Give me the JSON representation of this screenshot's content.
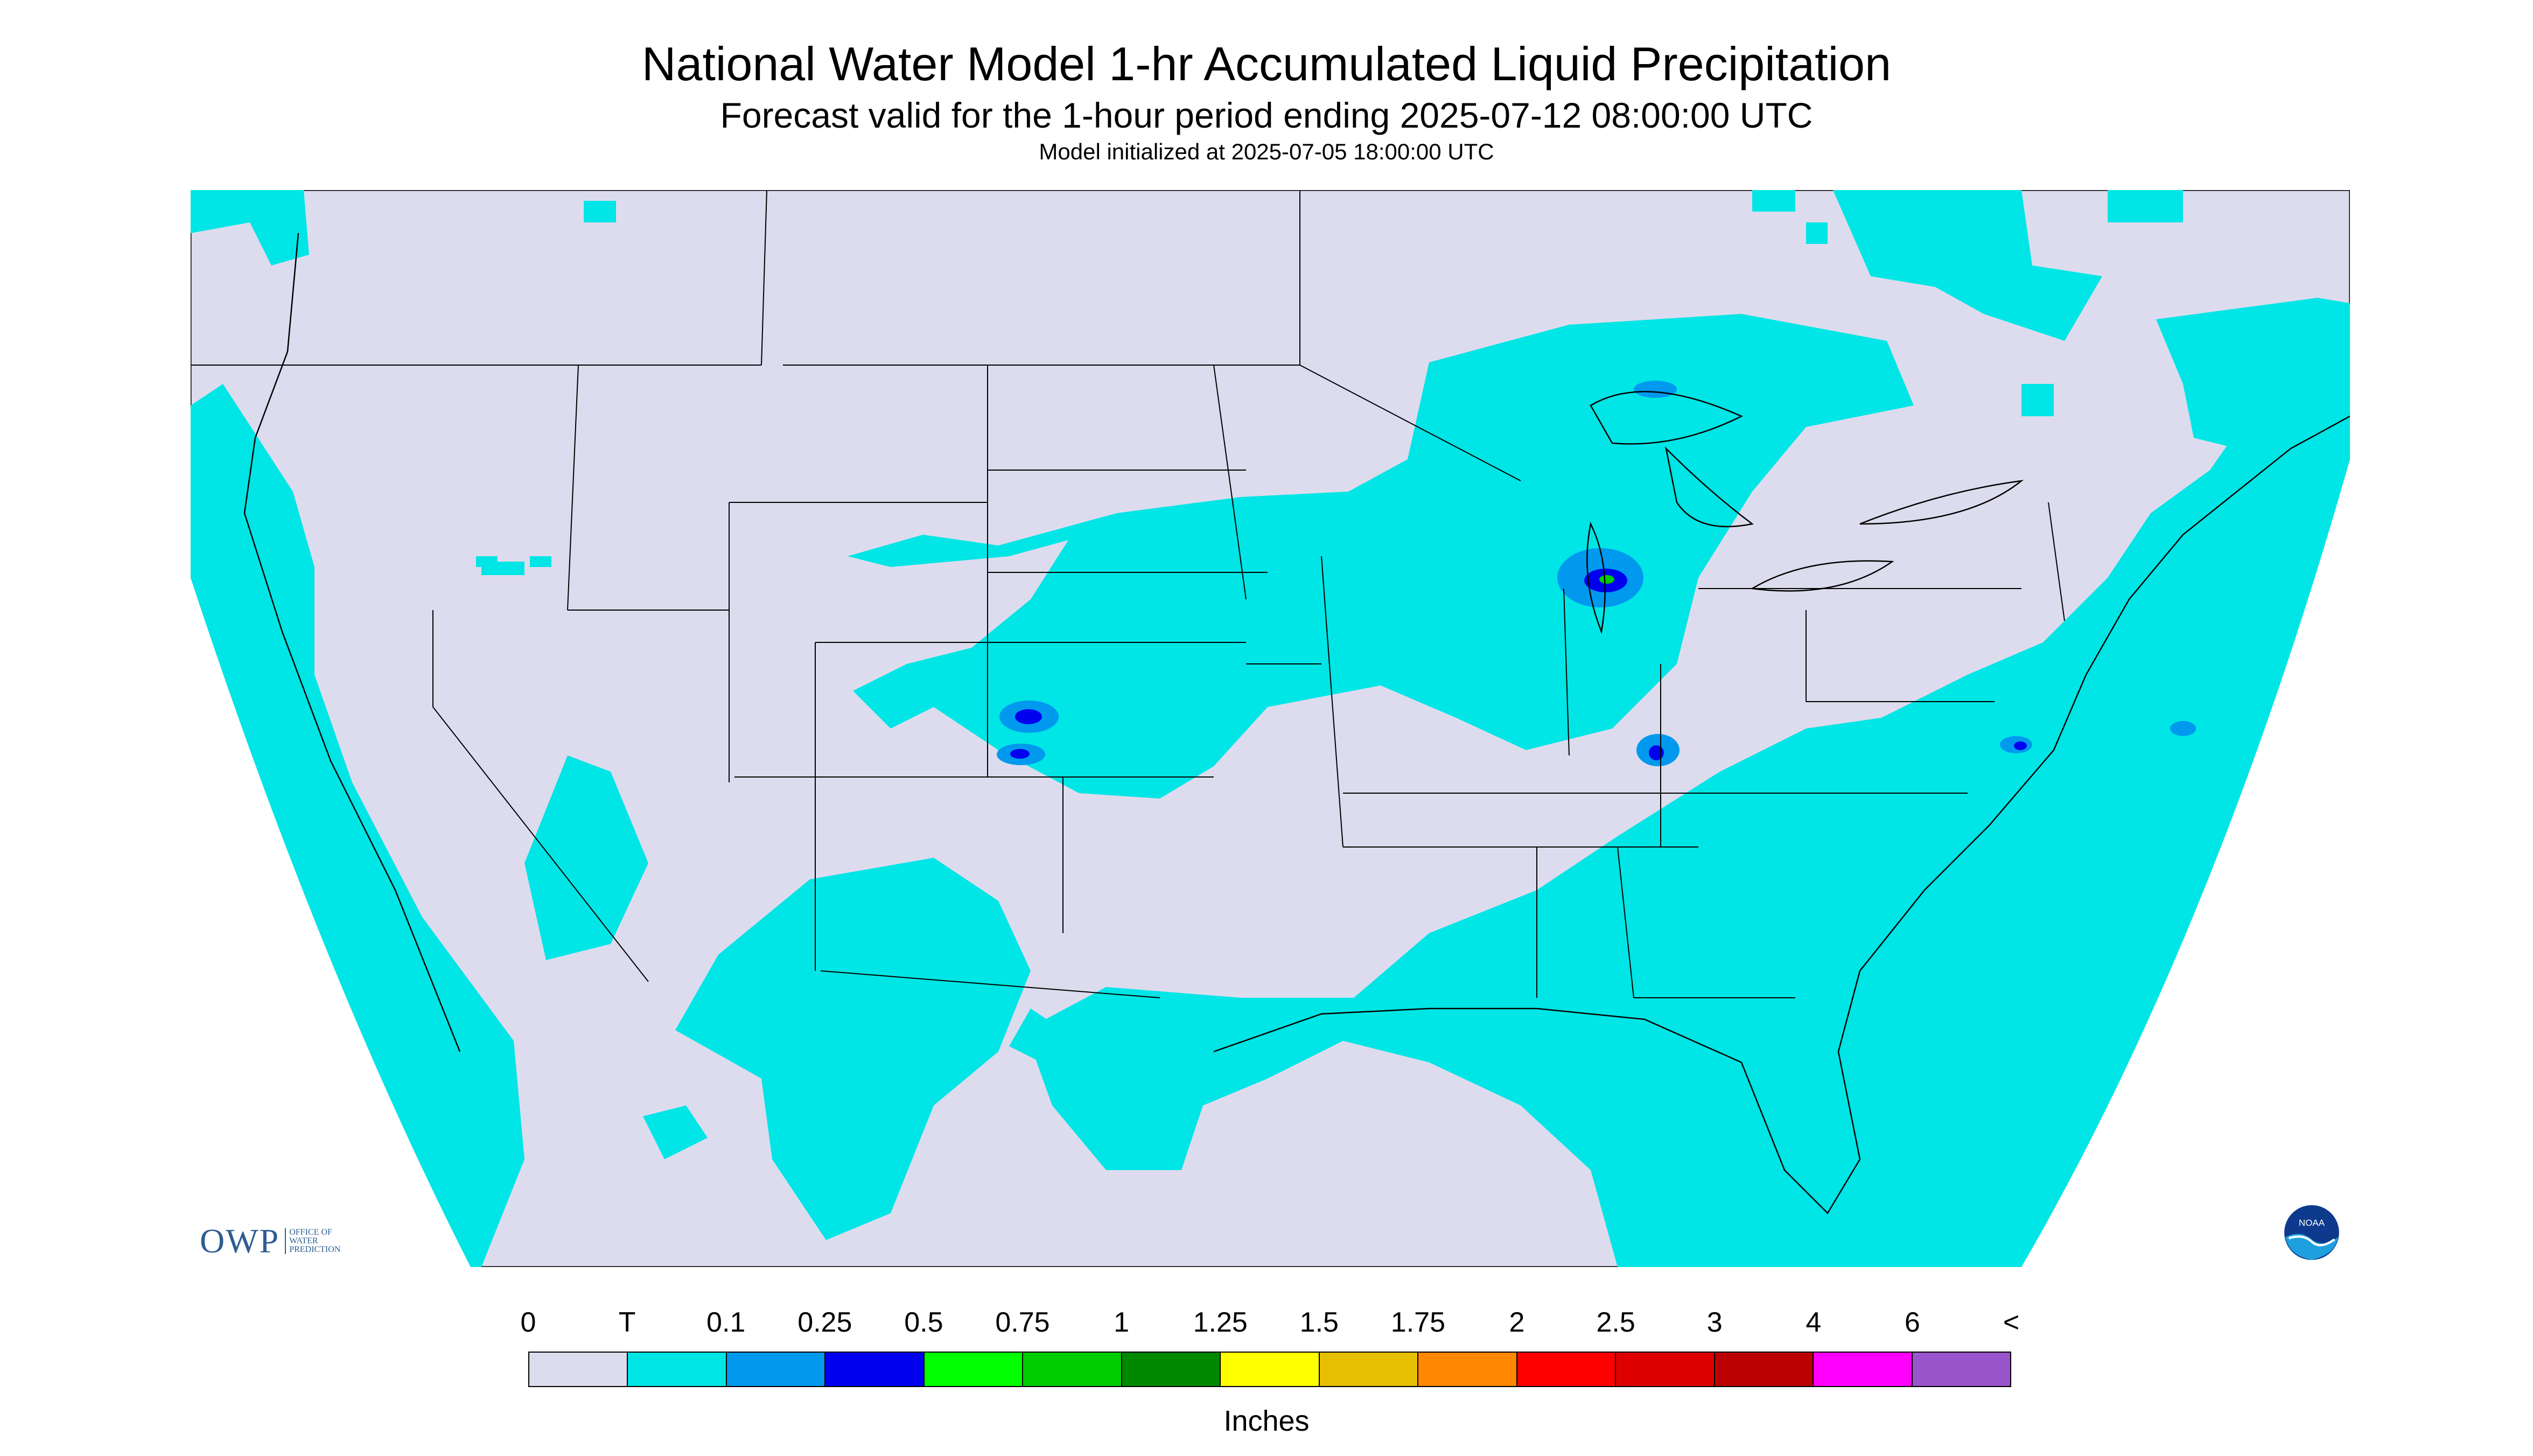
{
  "header": {
    "title": "National Water Model 1-hr Accumulated Liquid Precipitation",
    "subtitle": "Forecast valid for the 1-hour period ending 2025-07-12 08:00:00 UTC",
    "init_line": "Model initialized at 2025-07-05 18:00:00 UTC"
  },
  "map": {
    "background_color": "#dcdcee",
    "land_boundary_color": "#000000",
    "precip_light_color": "#00e5e5",
    "precip_mod_color": "#0099ee",
    "precip_heavy_color": "#0000ee"
  },
  "logos": {
    "owp": {
      "mark": "OWP",
      "line1": "OFFICE OF",
      "line2": "WATER",
      "line3": "PREDICTION"
    },
    "noaa": {
      "mark": "NOAA"
    }
  },
  "legend": {
    "labels": [
      "0",
      "T",
      "0.1",
      "0.25",
      "0.5",
      "0.75",
      "1",
      "1.25",
      "1.5",
      "1.75",
      "2",
      "2.5",
      "3",
      "4",
      "6",
      "<"
    ],
    "colors": [
      "#dcdcee",
      "#00e5e5",
      "#0099ee",
      "#0000ee",
      "#00ff00",
      "#00cc00",
      "#008800",
      "#ffff00",
      "#e6bf00",
      "#ff8800",
      "#ff0000",
      "#dd0000",
      "#bb0000",
      "#ff00ff",
      "#9955cc"
    ],
    "units": "Inches"
  }
}
